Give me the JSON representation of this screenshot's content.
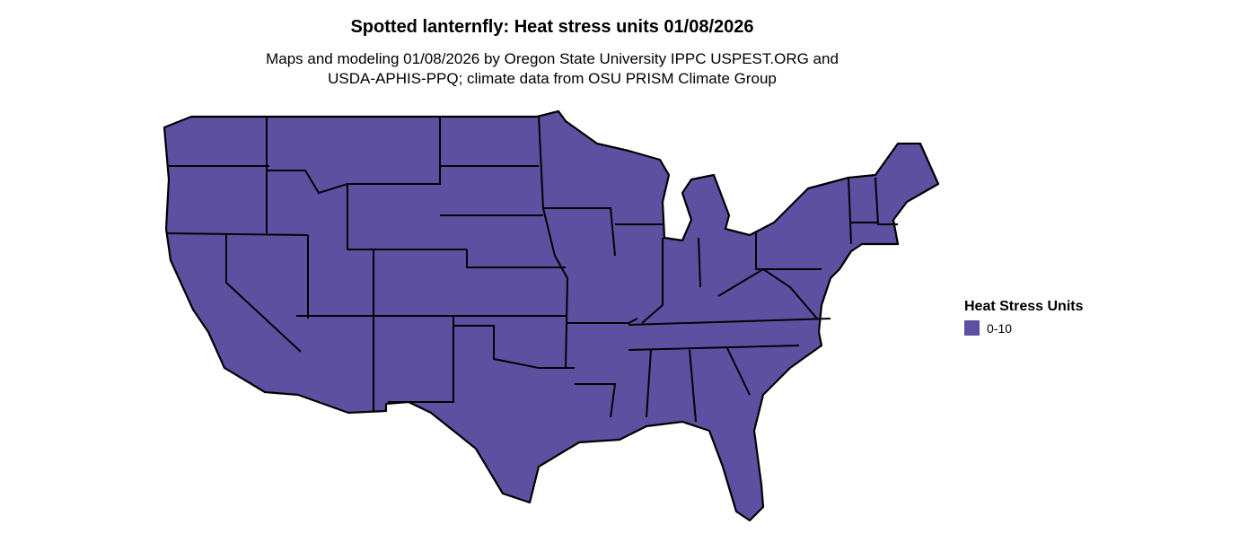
{
  "title": "Spotted lanternfly: Heat stress units 01/08/2026",
  "subtitle_line1": "Maps and modeling 01/08/2026 by Oregon State University IPPC USPEST.ORG and",
  "subtitle_line2": "USDA-APHIS-PPQ; climate data from OSU PRISM Climate Group",
  "map": {
    "region": "Contiguous United States",
    "fill_color": "#5E50A1",
    "border_color": "#000000"
  },
  "legend": {
    "title": "Heat Stress Units",
    "items": [
      {
        "label": "0-10",
        "color": "#5E50A1"
      }
    ]
  }
}
